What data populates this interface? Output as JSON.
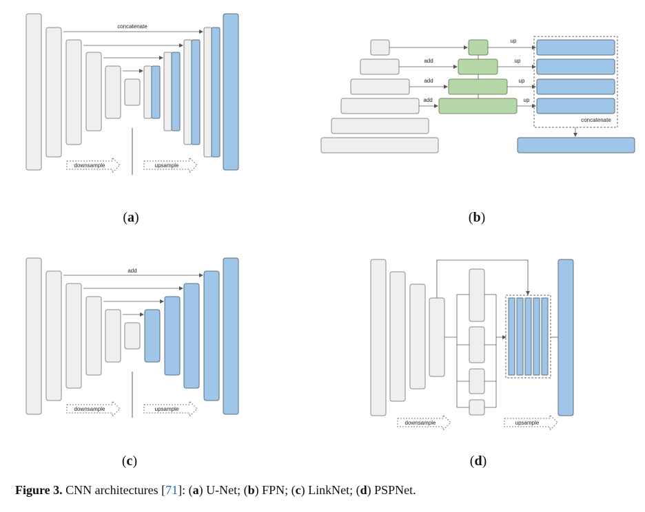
{
  "panels": {
    "a": {
      "tag": "a",
      "concat_label": "concatenate",
      "down_label": "downsample",
      "up_label": "upsample"
    },
    "b": {
      "tag": "b",
      "up_label": "up",
      "add_label": "add",
      "concat_label": "concatenate"
    },
    "c": {
      "tag": "c",
      "add_label": "add",
      "down_label": "downsample",
      "up_label": "upsample"
    },
    "d": {
      "tag": "d",
      "down_label": "downsample",
      "up_label": "upsample"
    }
  },
  "caption": {
    "figure": "Figure 3.",
    "text": " CNN architectures [",
    "ref": "71",
    "a_open": "]: (",
    "a_key": "a",
    "a_name": ") U-Net; (",
    "b_key": "b",
    "b_name": ") FPN; (",
    "c_key": "c",
    "c_name": ") LinkNet; (",
    "d_key": "d",
    "d_name": ") PSPNet."
  },
  "colors": {
    "gray_fill": "#efefef",
    "gray_stroke": "#8a8a8a",
    "blue_fill": "#9fc5e8",
    "green_fill": "#b6d7a8",
    "arrow": "#555555"
  }
}
